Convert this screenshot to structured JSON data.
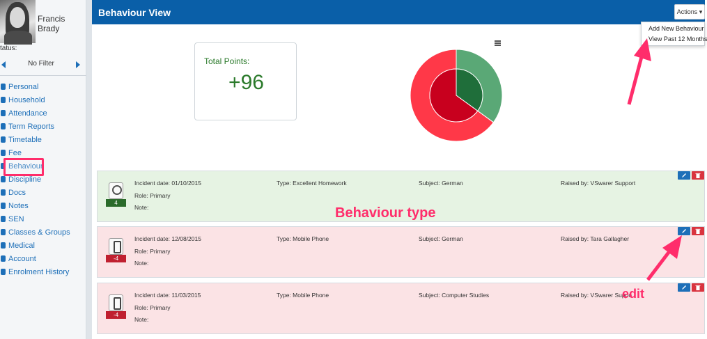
{
  "user": {
    "name": "Francis Brady",
    "status_label": "tatus:"
  },
  "filter": {
    "label": "No Filter"
  },
  "nav": [
    {
      "label": "Personal",
      "icon": "person-icon"
    },
    {
      "label": "Household",
      "icon": "home-icon"
    },
    {
      "label": "Attendance",
      "icon": "calendar-icon"
    },
    {
      "label": "Term Reports",
      "icon": "chart-line-icon"
    },
    {
      "label": "Timetable",
      "icon": "calendar-icon"
    },
    {
      "label": "Fee",
      "icon": "euro-icon"
    },
    {
      "label": "Behaviour",
      "icon": "behaviour-icon"
    },
    {
      "label": "Discipline",
      "icon": "discipline-icon"
    },
    {
      "label": "Docs",
      "icon": "document-icon"
    },
    {
      "label": "Notes",
      "icon": "notes-icon"
    },
    {
      "label": "SEN",
      "icon": "sen-icon"
    },
    {
      "label": "Classes & Groups",
      "icon": "group-icon"
    },
    {
      "label": "Medical",
      "icon": "medical-icon"
    },
    {
      "label": "Account",
      "icon": "account-icon"
    },
    {
      "label": "Enrolment History",
      "icon": "info-icon"
    }
  ],
  "header": {
    "title": "Behaviour View",
    "actions_label": "Actions ▾"
  },
  "actions_menu": [
    "Add New Behaviour",
    "View Past 12 Months"
  ],
  "summary": {
    "points_label": "Total Points:",
    "points_value": "+96"
  },
  "chart_data": {
    "type": "pie",
    "inner": [
      {
        "label": "positive",
        "value": 35,
        "color": "#1f6e3a"
      },
      {
        "label": "negative",
        "value": 65,
        "color": "#c8001e"
      }
    ],
    "outer": [
      {
        "label": "positive",
        "value": 35,
        "color": "#5aa876"
      },
      {
        "label": "negative",
        "value": 65,
        "color": "#ff3848"
      }
    ]
  },
  "incidents": [
    {
      "date": "Incident date: 01/10/2015",
      "role": "Role: Primary",
      "note": "Note:",
      "type": "Type: Excellent Homework",
      "subject": "Subject: German",
      "raised_by": "Raised by: VSwarer Support",
      "points": "4",
      "status": "positive",
      "icon": "award-icon"
    },
    {
      "date": "Incident date: 12/08/2015",
      "role": "Role: Primary",
      "note": "Note:",
      "type": "Type: Mobile Phone",
      "subject": "Subject: German",
      "raised_by": "Raised by: Tara Gallagher",
      "points": "-4",
      "status": "negative",
      "icon": "phone-icon"
    },
    {
      "date": "Incident date: 11/03/2015",
      "role": "Role: Primary",
      "note": "Note:",
      "type": "Type: Mobile Phone",
      "subject": "Subject: Computer Studies",
      "raised_by": "Raised by: VSwarer Suppo",
      "points": "-4",
      "status": "negative",
      "icon": "phone-icon"
    }
  ],
  "annotations": {
    "behaviour_type": "Behaviour type",
    "edit": "edit"
  },
  "colors": {
    "header": "#0a5fa8",
    "highlight": "#ff2d6b",
    "positive": "#2b7a2b",
    "negative": "#c02030"
  }
}
